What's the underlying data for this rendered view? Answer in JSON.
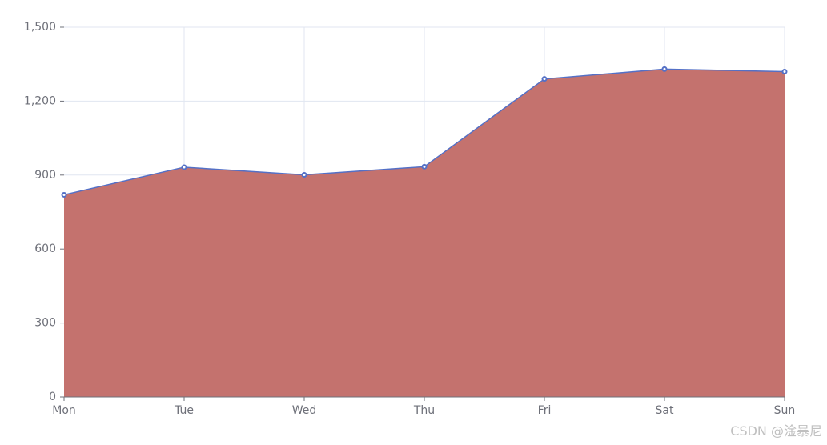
{
  "chart_data": {
    "type": "area",
    "categories": [
      "Mon",
      "Tue",
      "Wed",
      "Thu",
      "Fri",
      "Sat",
      "Sun"
    ],
    "series": [
      {
        "values": [
          820,
          932,
          901,
          934,
          1290,
          1330,
          1320
        ]
      }
    ],
    "y_ticks": [
      "0",
      "300",
      "600",
      "900",
      "1,200",
      "1,500"
    ],
    "ylim": [
      0,
      1500
    ],
    "grid": true,
    "colors": {
      "area_fill": "#c4726e",
      "line": "#5470c6",
      "grid": "#e0e6f1",
      "axis": "#6e7079",
      "point_fill": "#ffffff"
    }
  },
  "watermark": "CSDN @淦暴尼"
}
